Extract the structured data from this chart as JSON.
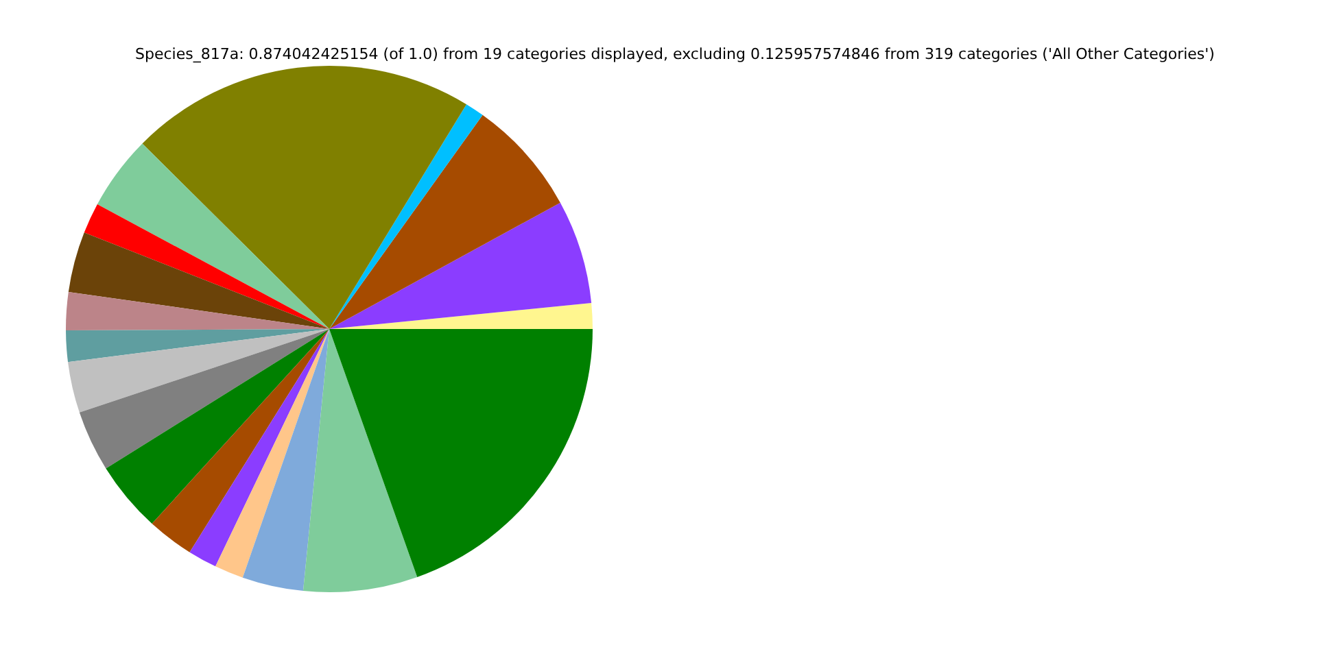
{
  "chart_data": {
    "type": "pie",
    "title": "Species_817a: 0.874042425154 (of 1.0) from 19 categories displayed, excluding 0.125957574846 from 319 categories ('All Other Categories')",
    "categories": [
      null,
      null,
      null,
      null,
      null,
      null,
      null,
      null,
      null,
      null,
      null,
      null,
      null,
      null,
      null,
      null,
      null,
      null,
      null
    ],
    "values": [
      1.58,
      6.39,
      7.14,
      1.17,
      21.28,
      4.58,
      1.89,
      3.72,
      2.33,
      1.92,
      3.14,
      3.75,
      4.36,
      2.86,
      1.78,
      1.78,
      3.75,
      7.0,
      19.58
    ],
    "colors": [
      "#fff68f",
      "#8b3dff",
      "#a64b00",
      "#00bfff",
      "#808000",
      "#7fcc9b",
      "#ff0000",
      "#6b4309",
      "#bc8489",
      "#5f9ea0",
      "#c0c0c0",
      "#808080",
      "#008000",
      "#a64b00",
      "#8b3dff",
      "#ffc68a",
      "#7faadb",
      "#7fcc9b",
      "#008000"
    ],
    "legend": false
  }
}
